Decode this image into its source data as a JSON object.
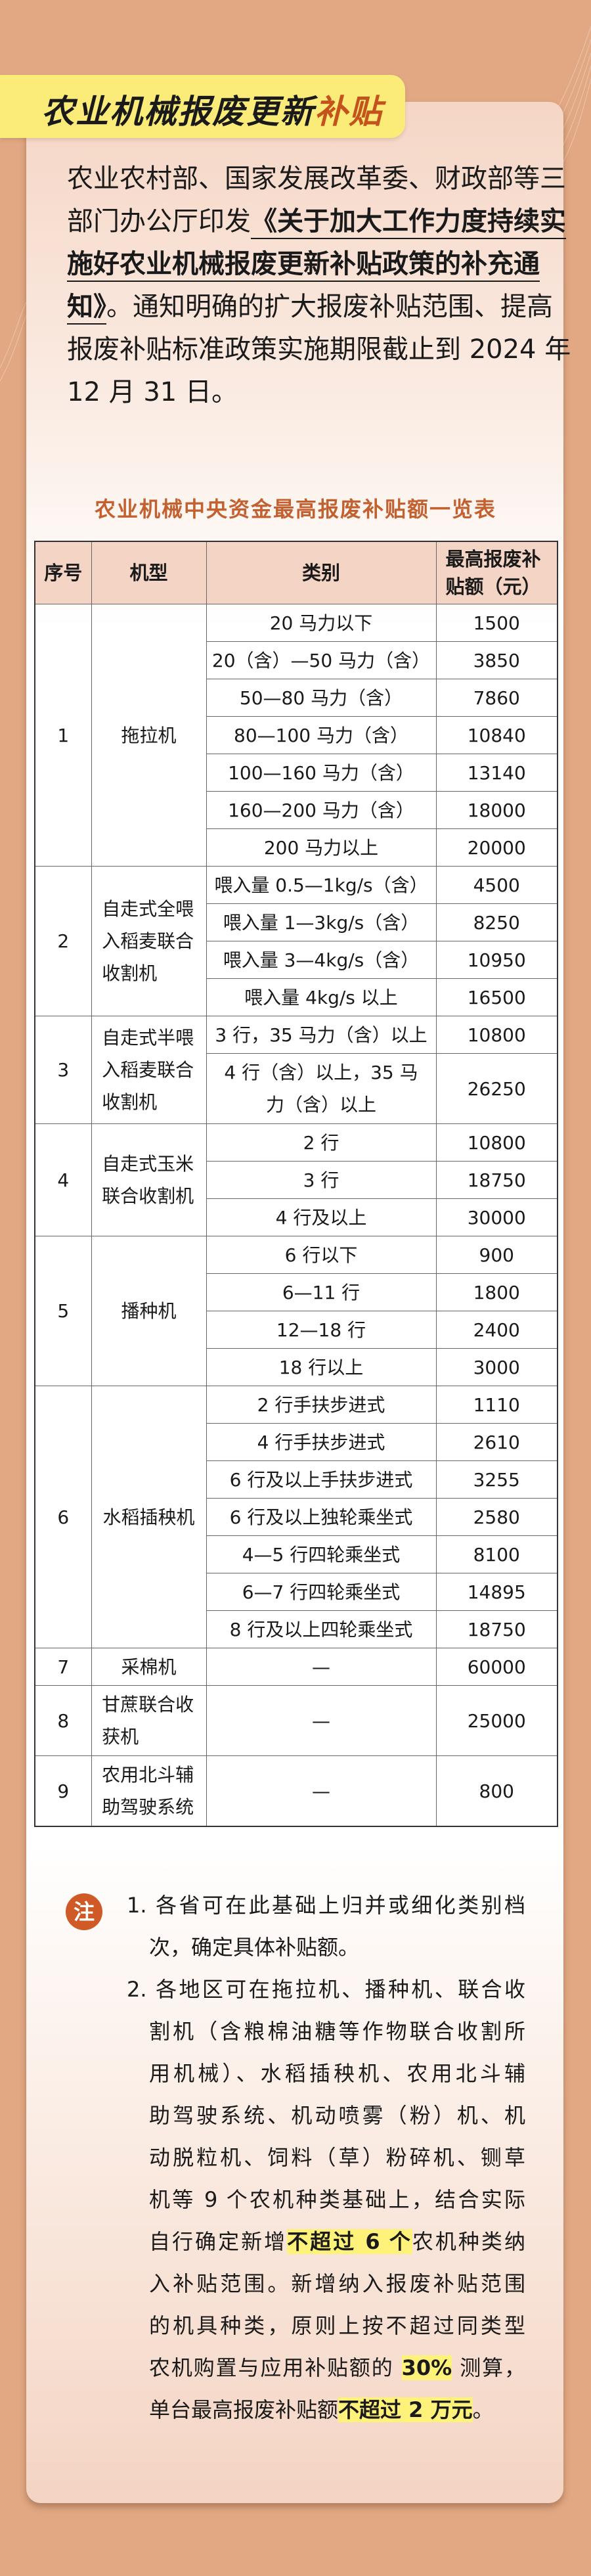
{
  "title": {
    "main": "农业机械报废更新",
    "accent": "补贴",
    "banner_color": "#fbec7a",
    "accent_color": "#c4521d"
  },
  "intro": {
    "lines": [
      [
        {
          "text": "农业农村部、国家发展改革委、财政部等三"
        }
      ],
      [
        {
          "text": "部门办公厅印发"
        },
        {
          "text": "《关于加大工作力度持续实",
          "emph": true
        }
      ],
      [
        {
          "text": "施好农业机械报废更新补贴政策的补充通",
          "emph": true
        }
      ],
      [
        {
          "text": "知》",
          "emph": true
        },
        {
          "text": "。通知明确的扩大报废补贴范围、提高"
        }
      ],
      [
        {
          "text": "报废补贴标准政策实施期限截止到 2024 年"
        }
      ],
      [
        {
          "text": "12 月 31 日。"
        }
      ]
    ]
  },
  "table": {
    "title": "农业机械中央资金最高报废补贴额一览表",
    "headers": [
      "序号",
      "机型",
      "类别",
      "最高报废补贴额（元）"
    ],
    "groups": [
      {
        "no": "1",
        "machine": "拖拉机",
        "items": [
          {
            "category": "20 马力以下",
            "amount": "1500"
          },
          {
            "category": "20（含）—50 马力（含）",
            "amount": "3850"
          },
          {
            "category": "50—80 马力（含）",
            "amount": "7860"
          },
          {
            "category": "80—100 马力（含）",
            "amount": "10840"
          },
          {
            "category": "100—160 马力（含）",
            "amount": "13140"
          },
          {
            "category": "160—200 马力（含）",
            "amount": "18000"
          },
          {
            "category": "200 马力以上",
            "amount": "20000"
          }
        ]
      },
      {
        "no": "2",
        "machine": "自走式全喂入稻麦联合收割机",
        "items": [
          {
            "category": "喂入量 0.5—1kg/s（含）",
            "amount": "4500"
          },
          {
            "category": "喂入量 1—3kg/s（含）",
            "amount": "8250"
          },
          {
            "category": "喂入量 3—4kg/s（含）",
            "amount": "10950"
          },
          {
            "category": "喂入量 4kg/s 以上",
            "amount": "16500"
          }
        ]
      },
      {
        "no": "3",
        "machine": "自走式半喂入稻麦联合收割机",
        "items": [
          {
            "category": "3 行，35 马力（含）以上",
            "amount": "10800"
          },
          {
            "category": "4 行（含）以上，35 马力（含）以上",
            "amount": "26250"
          }
        ]
      },
      {
        "no": "4",
        "machine": "自走式玉米联合收割机",
        "items": [
          {
            "category": "2 行",
            "amount": "10800"
          },
          {
            "category": "3 行",
            "amount": "18750"
          },
          {
            "category": "4 行及以上",
            "amount": "30000"
          }
        ]
      },
      {
        "no": "5",
        "machine": "播种机",
        "items": [
          {
            "category": "6 行以下",
            "amount": "900"
          },
          {
            "category": "6—11 行",
            "amount": "1800"
          },
          {
            "category": "12—18 行",
            "amount": "2400"
          },
          {
            "category": "18 行以上",
            "amount": "3000"
          }
        ]
      },
      {
        "no": "6",
        "machine": "水稻插秧机",
        "items": [
          {
            "category": "2 行手扶步进式",
            "amount": "1110"
          },
          {
            "category": "4 行手扶步进式",
            "amount": "2610"
          },
          {
            "category": "6 行及以上手扶步进式",
            "amount": "3255"
          },
          {
            "category": "6 行及以上独轮乘坐式",
            "amount": "2580"
          },
          {
            "category": "4—5 行四轮乘坐式",
            "amount": "8100"
          },
          {
            "category": "6—7 行四轮乘坐式",
            "amount": "14895"
          },
          {
            "category": "8 行及以上四轮乘坐式",
            "amount": "18750"
          }
        ]
      },
      {
        "no": "7",
        "machine": "采棉机",
        "items": [
          {
            "category": "—",
            "amount": "60000"
          }
        ]
      },
      {
        "no": "8",
        "machine": "甘蔗联合收获机",
        "items": [
          {
            "category": "—",
            "amount": "25000"
          }
        ]
      },
      {
        "no": "9",
        "machine": "农用北斗辅助驾驶系统",
        "items": [
          {
            "category": "—",
            "amount": "800"
          }
        ]
      }
    ]
  },
  "notes": {
    "badge": "注",
    "items": [
      {
        "lines": [
          [
            {
              "text": "1. 各省可在此基础上归并或细化类别档"
            }
          ],
          [
            {
              "text": "次，确定具体补贴额。"
            }
          ]
        ]
      },
      {
        "lines": [
          [
            {
              "text": "2. 各地区可在拖拉机、播种机、联合收"
            }
          ],
          [
            {
              "text": "割机（含粮棉油糖等作物联合收割所"
            }
          ],
          [
            {
              "text": "用机械）、水稻插秧机、农用北斗辅"
            }
          ],
          [
            {
              "text": "助驾驶系统、机动喷雾（粉）机、机"
            }
          ],
          [
            {
              "text": "动脱粒机、饲料（草）粉碎机、铡草"
            }
          ],
          [
            {
              "text": "机等 9 个农机种类基础上，结合实际"
            }
          ],
          [
            {
              "text": "自行确定新增"
            },
            {
              "text": "不超过 6 个",
              "hl": true
            },
            {
              "text": "农机种类纳"
            }
          ],
          [
            {
              "text": "入补贴范围。新增纳入报废补贴范围"
            }
          ],
          [
            {
              "text": "的机具种类，原则上按不超过同类型"
            }
          ],
          [
            {
              "text": "农机购置与应用补贴额的 "
            },
            {
              "text": "30%",
              "hl": true
            },
            {
              "text": " 测算，"
            }
          ],
          [
            {
              "text": "单台最高报废补贴额"
            },
            {
              "text": "不超过 2 万元",
              "hl": true
            },
            {
              "text": "。"
            }
          ]
        ]
      }
    ],
    "highlight_color": "#fff27a",
    "badge_color": "#cf5a26"
  },
  "colors": {
    "background": "#e1a883",
    "table_header": "#f4d4c4",
    "table_title": "#c2602f"
  }
}
